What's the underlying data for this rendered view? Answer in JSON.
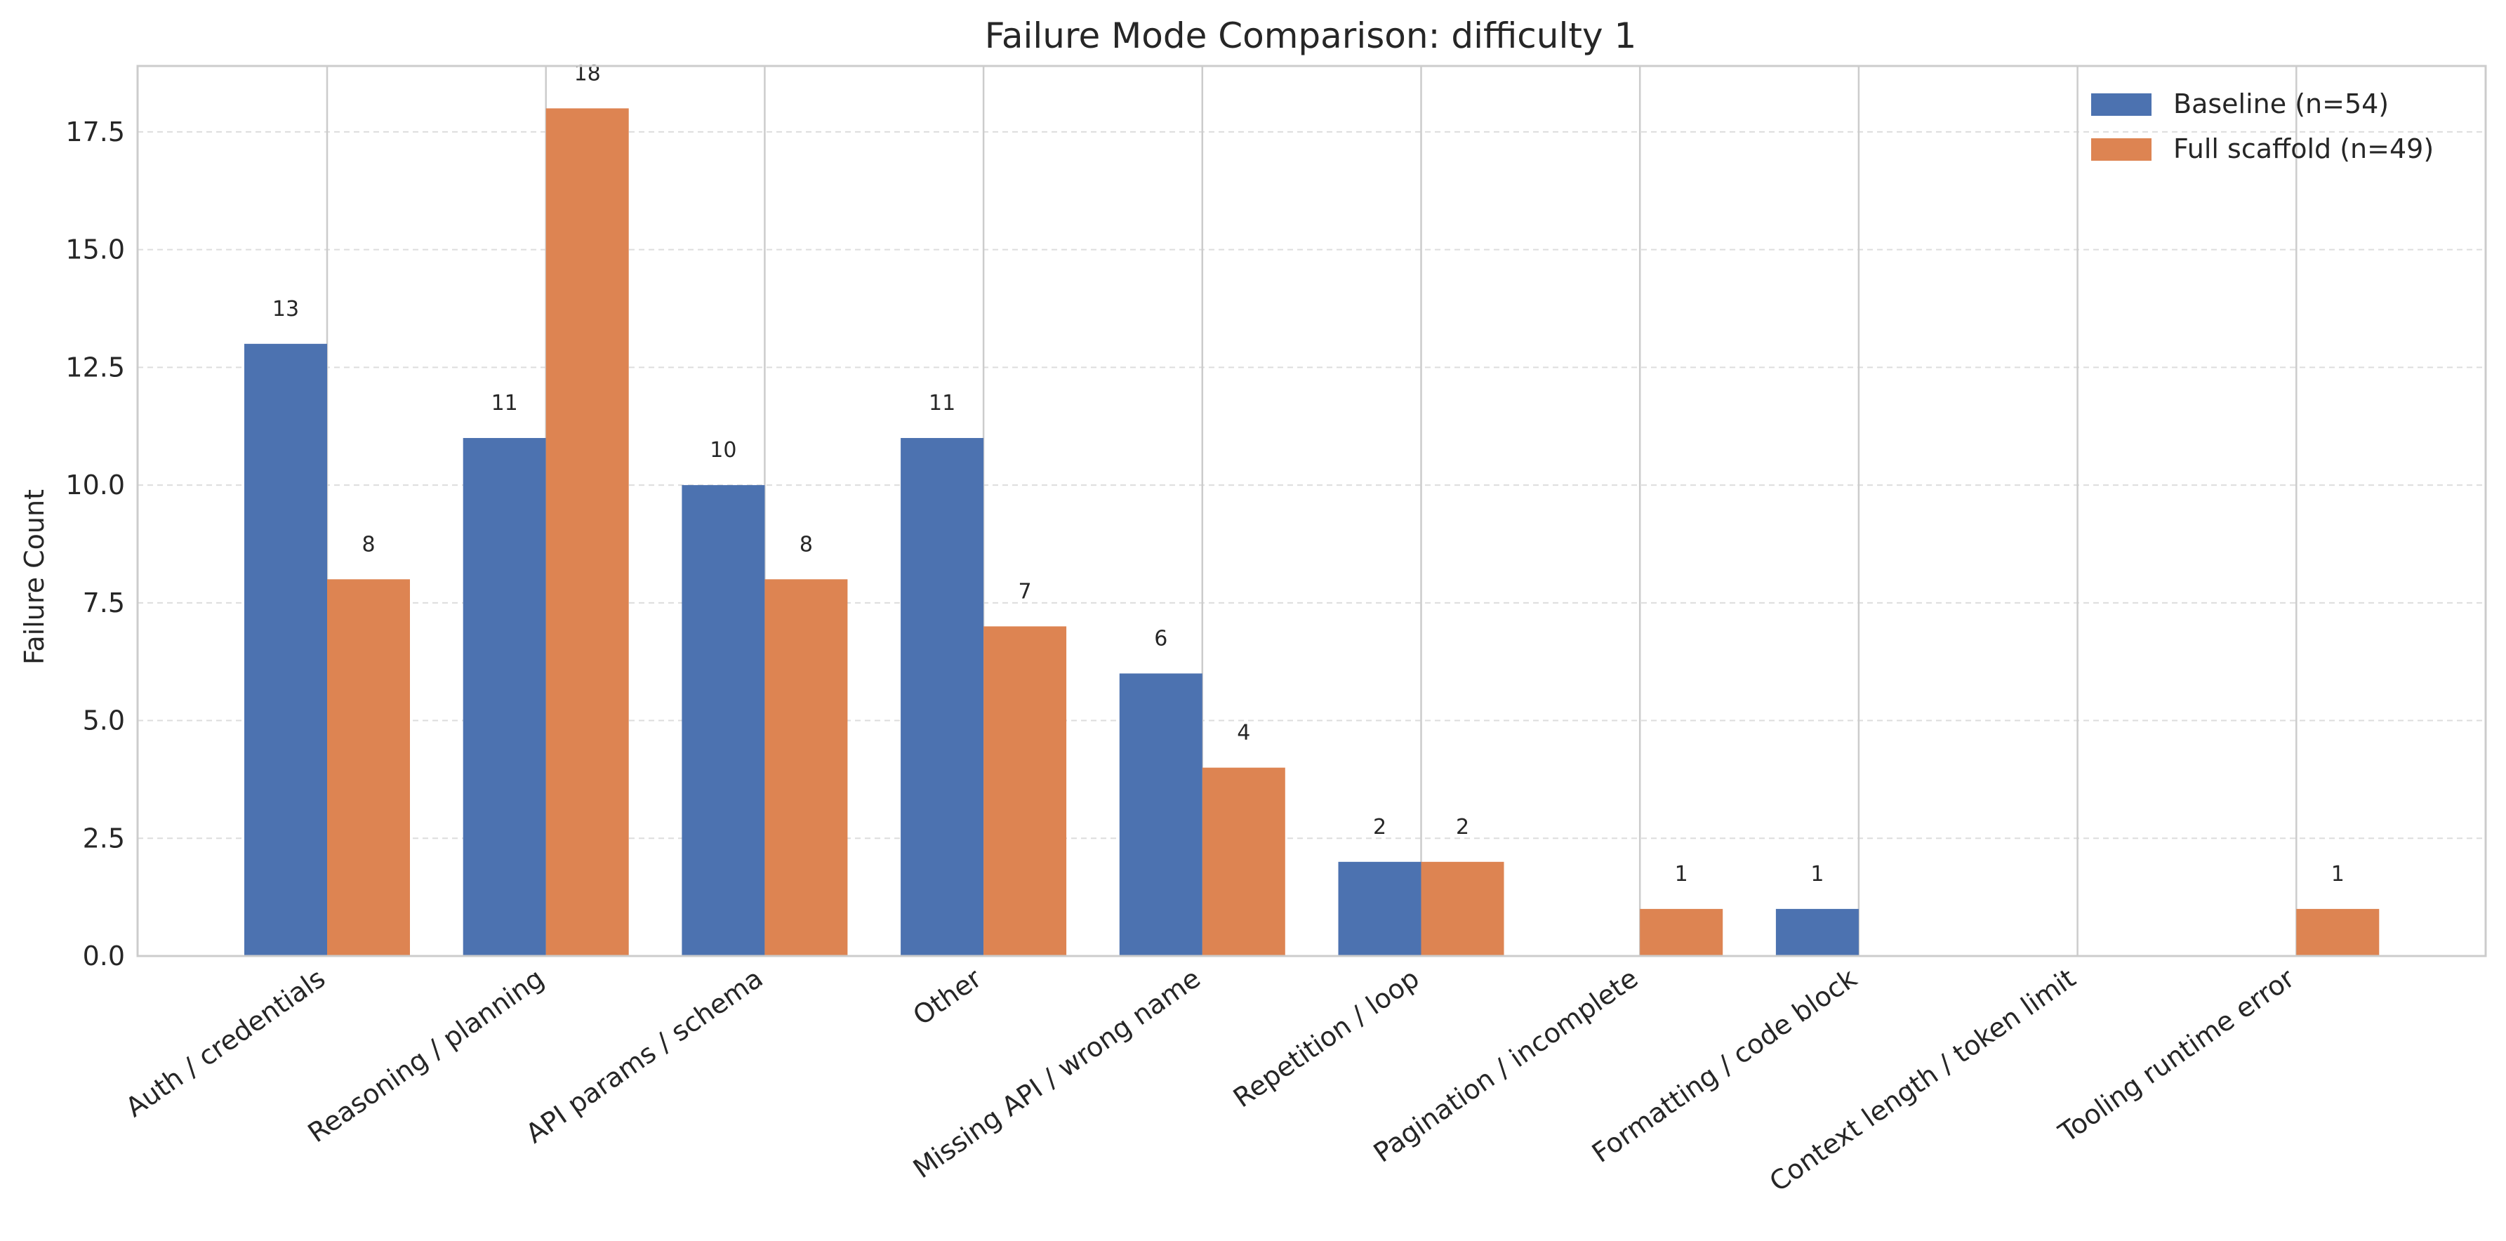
{
  "chart_data": {
    "type": "bar",
    "title": "Failure Mode Comparison: difficulty 1",
    "xlabel": "",
    "ylabel": "Failure Count",
    "ylim": [
      0,
      18.9
    ],
    "yticks": [
      "0.0",
      "2.5",
      "5.0",
      "7.5",
      "10.0",
      "12.5",
      "15.0",
      "17.5"
    ],
    "grid": true,
    "legend_position": "top-right",
    "categories": [
      "Auth / credentials",
      "Reasoning / planning",
      "API params / schema",
      "Other",
      "Missing API / wrong name",
      "Repetition / loop",
      "Pagination / incomplete",
      "Formatting / code block",
      "Context length / token limit",
      "Tooling runtime error"
    ],
    "series": [
      {
        "name": "Baseline (n=54)",
        "color": "#4c72b0",
        "values": [
          13,
          11,
          10,
          11,
          6,
          2,
          0,
          1,
          0,
          0
        ]
      },
      {
        "name": "Full scaffold (n=49)",
        "color": "#dd8452",
        "values": [
          8,
          18,
          8,
          7,
          4,
          2,
          1,
          0,
          0,
          1
        ]
      }
    ]
  }
}
